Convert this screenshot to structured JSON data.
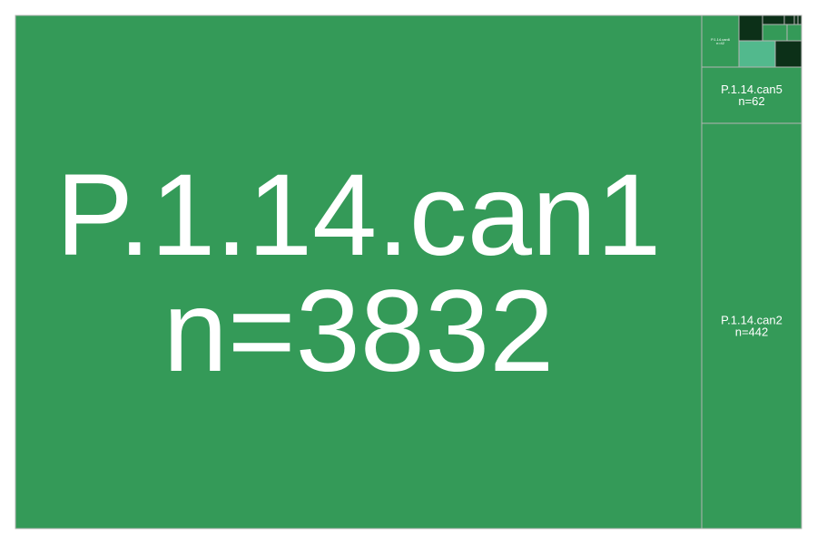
{
  "chart_data": {
    "type": "treemap",
    "title": "",
    "nodes": [
      {
        "name": "P.1.14.can1",
        "n": 3832,
        "value_label": "n=3832",
        "color": "#349a58"
      },
      {
        "name": "P.1.14.can2",
        "n": 442,
        "value_label": "n=442",
        "color": "#349a58"
      },
      {
        "name": "P.1.14.can5",
        "n": 62,
        "value_label": "n=62",
        "color": "#349a58"
      },
      {
        "name": "P.1.14.can6",
        "n": 42,
        "value_label": "n=42",
        "color": "#349a58"
      },
      {
        "name": "",
        "n": null,
        "value_label": "",
        "color": "#0c3018"
      },
      {
        "name": "",
        "n": null,
        "value_label": "",
        "color": "#0c3018"
      },
      {
        "name": "",
        "n": null,
        "value_label": "",
        "color": "#349a58"
      },
      {
        "name": "",
        "n": null,
        "value_label": "",
        "color": "#349a58"
      },
      {
        "name": "",
        "n": null,
        "value_label": "",
        "color": "#52b98d"
      },
      {
        "name": "",
        "n": null,
        "value_label": "",
        "color": "#0c3018"
      },
      {
        "name": "",
        "n": null,
        "value_label": "",
        "color": "#0c3018"
      },
      {
        "name": "",
        "n": null,
        "value_label": "",
        "color": "#0c3018"
      },
      {
        "name": "",
        "n": null,
        "value_label": "",
        "color": "#0c3018"
      }
    ],
    "border_color": "#b4b4b4"
  }
}
